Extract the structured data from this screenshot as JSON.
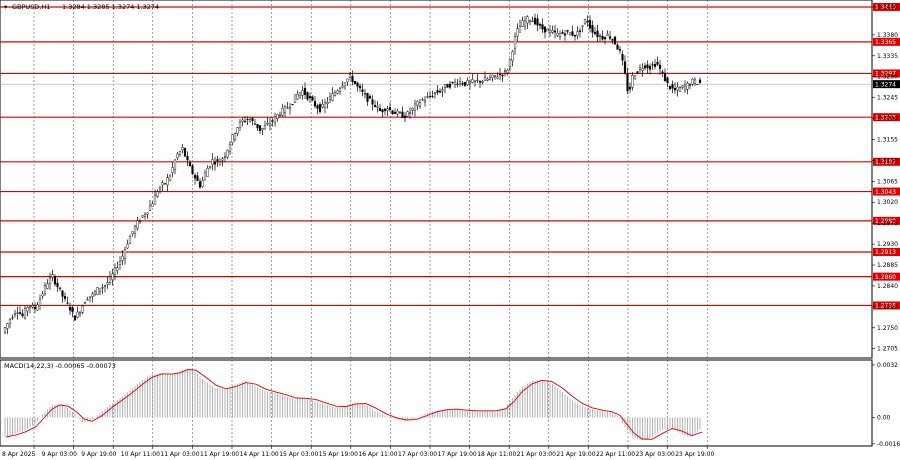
{
  "chart_data": [
    {
      "type": "candlestick",
      "title": "GBPUSD,H1",
      "ohlc_text": "1.3284 1.3285 1.3274 1.3274",
      "current_price": 1.3274,
      "ylim": [
        1.2685,
        1.3455
      ],
      "y_ticks": [
        1.344,
        1.338,
        1.3335,
        1.329,
        1.3245,
        1.32,
        1.3155,
        1.311,
        1.3065,
        1.302,
        1.2975,
        1.293,
        1.2885,
        1.284,
        1.2795,
        1.275,
        1.2705
      ],
      "x_tick_labels": [
        "8 Apr 2025",
        "9 Apr 03:00",
        "9 Apr 19:00",
        "10 Apr 11:00",
        "11 Apr 03:00",
        "11 Apr 19:00",
        "14 Apr 11:00",
        "15 Apr 03:00",
        "15 Apr 19:00",
        "16 Apr 11:00",
        "17 Apr 03:00",
        "17 Apr 19:00",
        "18 Apr 11:00",
        "21 Apr 03:00",
        "21 Apr 19:00",
        "22 Apr 11:00",
        "23 Apr 03:00",
        "23 Apr 19:00"
      ],
      "levels": [
        {
          "value": 1.344,
          "label": "1.3440"
        },
        {
          "value": 1.3365,
          "label": "1.3365"
        },
        {
          "value": 1.3297,
          "label": "1.3297"
        },
        {
          "value": 1.3203,
          "label": "1.3203"
        },
        {
          "value": 1.3107,
          "label": "1.3107"
        },
        {
          "value": 1.3043,
          "label": "1.3043"
        },
        {
          "value": 1.298,
          "label": "1.2980"
        },
        {
          "value": 1.2913,
          "label": "1.2913"
        },
        {
          "value": 1.286,
          "label": "1.2860"
        },
        {
          "value": 1.2798,
          "label": "1.2798"
        }
      ],
      "level_color": "#e00000",
      "price_path": [
        [
          0,
          1.274
        ],
        [
          8,
          1.277
        ],
        [
          14,
          1.279
        ],
        [
          20,
          1.2775
        ],
        [
          26,
          1.28
        ],
        [
          32,
          1.279
        ],
        [
          38,
          1.2815
        ],
        [
          44,
          1.2845
        ],
        [
          50,
          1.286
        ],
        [
          56,
          1.2835
        ],
        [
          62,
          1.281
        ],
        [
          68,
          1.279
        ],
        [
          72,
          1.277
        ],
        [
          78,
          1.279
        ],
        [
          84,
          1.2815
        ],
        [
          90,
          1.282
        ],
        [
          96,
          1.2835
        ],
        [
          102,
          1.284
        ],
        [
          108,
          1.2855
        ],
        [
          114,
          1.288
        ],
        [
          120,
          1.2905
        ],
        [
          126,
          1.294
        ],
        [
          132,
          1.2965
        ],
        [
          138,
          1.2985
        ],
        [
          144,
          1.3
        ],
        [
          150,
          1.302
        ],
        [
          156,
          1.305
        ],
        [
          162,
          1.306
        ],
        [
          168,
          1.308
        ],
        [
          174,
          1.312
        ],
        [
          180,
          1.3135
        ],
        [
          186,
          1.31
        ],
        [
          192,
          1.3075
        ],
        [
          198,
          1.3055
        ],
        [
          204,
          1.309
        ],
        [
          210,
          1.311
        ],
        [
          216,
          1.3105
        ],
        [
          222,
          1.312
        ],
        [
          228,
          1.315
        ],
        [
          234,
          1.318
        ],
        [
          240,
          1.3195
        ],
        [
          246,
          1.32
        ],
        [
          252,
          1.319
        ],
        [
          258,
          1.3175
        ],
        [
          264,
          1.3185
        ],
        [
          270,
          1.3195
        ],
        [
          276,
          1.321
        ],
        [
          282,
          1.322
        ],
        [
          288,
          1.323
        ],
        [
          294,
          1.325
        ],
        [
          300,
          1.326
        ],
        [
          306,
          1.3245
        ],
        [
          312,
          1.323
        ],
        [
          318,
          1.322
        ],
        [
          324,
          1.3235
        ],
        [
          330,
          1.325
        ],
        [
          336,
          1.3265
        ],
        [
          342,
          1.328
        ],
        [
          348,
          1.329
        ],
        [
          354,
          1.327
        ],
        [
          360,
          1.3255
        ],
        [
          366,
          1.324
        ],
        [
          372,
          1.323
        ],
        [
          378,
          1.3215
        ],
        [
          384,
          1.3225
        ],
        [
          390,
          1.3215
        ],
        [
          396,
          1.321
        ],
        [
          402,
          1.3205
        ],
        [
          408,
          1.3215
        ],
        [
          414,
          1.323
        ],
        [
          420,
          1.324
        ],
        [
          426,
          1.3245
        ],
        [
          432,
          1.3255
        ],
        [
          438,
          1.326
        ],
        [
          444,
          1.327
        ],
        [
          450,
          1.3275
        ],
        [
          456,
          1.328
        ],
        [
          462,
          1.3275
        ],
        [
          468,
          1.3278
        ],
        [
          474,
          1.328
        ],
        [
          480,
          1.3282
        ],
        [
          486,
          1.3285
        ],
        [
          492,
          1.329
        ],
        [
          498,
          1.3295
        ],
        [
          504,
          1.33
        ],
        [
          508,
          1.333
        ],
        [
          512,
          1.337
        ],
        [
          516,
          1.3395
        ],
        [
          520,
          1.3405
        ],
        [
          526,
          1.3415
        ],
        [
          532,
          1.341
        ],
        [
          538,
          1.3395
        ],
        [
          544,
          1.339
        ],
        [
          550,
          1.3385
        ],
        [
          556,
          1.338
        ],
        [
          562,
          1.3385
        ],
        [
          568,
          1.3383
        ],
        [
          574,
          1.338
        ],
        [
          580,
          1.34
        ],
        [
          584,
          1.3415
        ],
        [
          588,
          1.3395
        ],
        [
          594,
          1.338
        ],
        [
          600,
          1.3375
        ],
        [
          606,
          1.338
        ],
        [
          612,
          1.3365
        ],
        [
          618,
          1.334
        ],
        [
          622,
          1.33
        ],
        [
          626,
          1.325
        ],
        [
          630,
          1.329
        ],
        [
          636,
          1.3305
        ],
        [
          642,
          1.3315
        ],
        [
          648,
          1.331
        ],
        [
          654,
          1.332
        ],
        [
          660,
          1.3295
        ],
        [
          666,
          1.327
        ],
        [
          672,
          1.326
        ],
        [
          678,
          1.3265
        ],
        [
          684,
          1.327
        ],
        [
          690,
          1.328
        ],
        [
          696,
          1.3277
        ]
      ],
      "indicator": {
        "label": "MACD(14,22,3) -0.00065 -0.00073",
        "ylim": [
          -0.00175,
          0.0035
        ],
        "y_ticks": [
          0.0032,
          0.0,
          -0.00162
        ],
        "y_tick_labels": [
          "0.0032",
          "0.00",
          "-0.00162"
        ],
        "histogram_color": "#a0a0a0",
        "signal_color": "#e00000",
        "path": [
          [
            0,
            -0.0012
          ],
          [
            10,
            -0.001
          ],
          [
            20,
            -0.0008
          ],
          [
            30,
            -0.0004
          ],
          [
            38,
            0.0002
          ],
          [
            46,
            0.0007
          ],
          [
            54,
            0.0008
          ],
          [
            62,
            0.0006
          ],
          [
            70,
            0.0002
          ],
          [
            78,
            -0.0003
          ],
          [
            86,
            -0.0002
          ],
          [
            96,
            0.0003
          ],
          [
            106,
            0.0008
          ],
          [
            116,
            0.0012
          ],
          [
            126,
            0.0017
          ],
          [
            136,
            0.0022
          ],
          [
            146,
            0.0026
          ],
          [
            156,
            0.0027
          ],
          [
            166,
            0.0026
          ],
          [
            174,
            0.0028
          ],
          [
            182,
            0.003
          ],
          [
            190,
            0.0028
          ],
          [
            200,
            0.0022
          ],
          [
            210,
            0.0018
          ],
          [
            220,
            0.0017
          ],
          [
            230,
            0.002
          ],
          [
            240,
            0.0022
          ],
          [
            250,
            0.0019
          ],
          [
            260,
            0.0016
          ],
          [
            270,
            0.0015
          ],
          [
            280,
            0.0013
          ],
          [
            290,
            0.0011
          ],
          [
            300,
            0.0012
          ],
          [
            310,
            0.001
          ],
          [
            320,
            0.0008
          ],
          [
            330,
            0.0006
          ],
          [
            340,
            0.0007
          ],
          [
            350,
            0.0009
          ],
          [
            360,
            0.0008
          ],
          [
            370,
            0.0004
          ],
          [
            380,
            0.0001
          ],
          [
            390,
            -0.0001
          ],
          [
            400,
            -0.0002
          ],
          [
            410,
            -0.0001
          ],
          [
            420,
            0.0002
          ],
          [
            430,
            0.0004
          ],
          [
            440,
            0.0005
          ],
          [
            450,
            0.0005
          ],
          [
            460,
            0.0004
          ],
          [
            470,
            0.0004
          ],
          [
            480,
            0.0004
          ],
          [
            490,
            0.0004
          ],
          [
            500,
            0.0006
          ],
          [
            508,
            0.0012
          ],
          [
            516,
            0.0018
          ],
          [
            526,
            0.0022
          ],
          [
            536,
            0.0023
          ],
          [
            546,
            0.0021
          ],
          [
            556,
            0.0016
          ],
          [
            566,
            0.0011
          ],
          [
            576,
            0.0007
          ],
          [
            586,
            0.0005
          ],
          [
            596,
            0.0004
          ],
          [
            606,
            0.0003
          ],
          [
            614,
            0.0
          ],
          [
            620,
            -0.0006
          ],
          [
            628,
            -0.0012
          ],
          [
            636,
            -0.0014
          ],
          [
            646,
            -0.0013
          ],
          [
            656,
            -0.0008
          ],
          [
            666,
            -0.0006
          ],
          [
            676,
            -0.001
          ],
          [
            686,
            -0.0012
          ],
          [
            696,
            -0.0007
          ]
        ]
      }
    }
  ]
}
